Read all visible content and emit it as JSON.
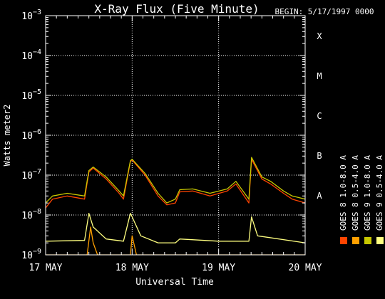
{
  "chart_data": {
    "type": "line",
    "title": "X-Ray Flux (Five Minute)",
    "begin_label": "BEGIN: 5/17/1997 0000",
    "ylabel": "Watts meter2",
    "xlabel": "Universal Time",
    "x_ticks": [
      "17 MAY",
      "18 MAY",
      "19 MAY",
      "20 MAY"
    ],
    "y_scale": "log",
    "ylim_exponents": [
      -9,
      -3
    ],
    "y_tick_exponents": [
      -9,
      -8,
      -7,
      -6,
      -5,
      -4,
      -3
    ],
    "xlim_days": [
      0,
      3
    ],
    "grid": true,
    "flare_classes": [
      {
        "label": "A",
        "exp": -8
      },
      {
        "label": "B",
        "exp": -7
      },
      {
        "label": "C",
        "exp": -6
      },
      {
        "label": "M",
        "exp": -5
      },
      {
        "label": "X",
        "exp": -4
      }
    ],
    "legend": [
      {
        "label": "GOES 8 1.0-8.0 A",
        "color": "#ff4400"
      },
      {
        "label": "GOES 8 0.5-4.0 A",
        "color": "#ffa000"
      },
      {
        "label": "GOES 9 1.0-8.0 A",
        "color": "#c8c800"
      },
      {
        "label": "GOES 9 0.5-4.0 A",
        "color": "#ffff80"
      }
    ],
    "series": [
      {
        "name": "GOES 8 1.0-8.0 A",
        "color": "#ff4400",
        "points": [
          [
            0.0,
            1.5e-08
          ],
          [
            0.08,
            2.5e-08
          ],
          [
            0.25,
            3e-08
          ],
          [
            0.45,
            2.5e-08
          ],
          [
            0.5,
            1.2e-07
          ],
          [
            0.55,
            1.5e-07
          ],
          [
            0.7,
            8e-08
          ],
          [
            0.85,
            3.5e-08
          ],
          [
            0.9,
            2.5e-08
          ],
          [
            0.98,
            2.2e-07
          ],
          [
            1.0,
            2.4e-07
          ],
          [
            1.15,
            1e-07
          ],
          [
            1.3,
            3e-08
          ],
          [
            1.4,
            1.8e-08
          ],
          [
            1.5,
            2e-08
          ],
          [
            1.55,
            3.8e-08
          ],
          [
            1.7,
            4e-08
          ],
          [
            1.9,
            3e-08
          ],
          [
            2.1,
            4e-08
          ],
          [
            2.2,
            6e-08
          ],
          [
            2.35,
            2e-08
          ],
          [
            2.38,
            2.5e-07
          ],
          [
            2.5,
            8e-08
          ],
          [
            2.6,
            6e-08
          ],
          [
            2.75,
            3.5e-08
          ],
          [
            2.85,
            2.5e-08
          ],
          [
            3.0,
            2e-08
          ]
        ]
      },
      {
        "name": "GOES 8 0.5-4.0 A",
        "color": "#ffa000",
        "points": [
          [
            0.0,
            1e-09
          ],
          [
            0.48,
            1e-09
          ],
          [
            0.52,
            5e-09
          ],
          [
            0.55,
            2e-09
          ],
          [
            0.6,
            1e-09
          ],
          [
            0.98,
            1e-09
          ],
          [
            1.0,
            3e-09
          ],
          [
            1.05,
            1e-09
          ],
          [
            3.0,
            1e-09
          ]
        ]
      },
      {
        "name": "GOES 9 1.0-8.0 A",
        "color": "#c8c800",
        "points": [
          [
            0.0,
            2e-08
          ],
          [
            0.08,
            3e-08
          ],
          [
            0.25,
            3.5e-08
          ],
          [
            0.45,
            3e-08
          ],
          [
            0.5,
            1.3e-07
          ],
          [
            0.55,
            1.6e-07
          ],
          [
            0.7,
            9e-08
          ],
          [
            0.85,
            4e-08
          ],
          [
            0.9,
            3e-08
          ],
          [
            0.98,
            2.3e-07
          ],
          [
            1.0,
            2.5e-07
          ],
          [
            1.15,
            1.1e-07
          ],
          [
            1.3,
            3.5e-08
          ],
          [
            1.4,
            2e-08
          ],
          [
            1.5,
            2.5e-08
          ],
          [
            1.55,
            4.3e-08
          ],
          [
            1.7,
            4.5e-08
          ],
          [
            1.9,
            3.5e-08
          ],
          [
            2.1,
            4.5e-08
          ],
          [
            2.2,
            7e-08
          ],
          [
            2.35,
            2.5e-08
          ],
          [
            2.38,
            2.8e-07
          ],
          [
            2.5,
            9e-08
          ],
          [
            2.6,
            7e-08
          ],
          [
            2.75,
            4e-08
          ],
          [
            2.85,
            3e-08
          ],
          [
            3.0,
            2.5e-08
          ]
        ]
      },
      {
        "name": "GOES 9 0.5-4.0 A",
        "color": "#ffff80",
        "points": [
          [
            0.0,
            2.2e-09
          ],
          [
            0.45,
            2.3e-09
          ],
          [
            0.5,
            1.1e-08
          ],
          [
            0.55,
            5e-09
          ],
          [
            0.7,
            2.5e-09
          ],
          [
            0.9,
            2.2e-09
          ],
          [
            0.98,
            1.1e-08
          ],
          [
            1.0,
            9e-09
          ],
          [
            1.1,
            3e-09
          ],
          [
            1.3,
            2e-09
          ],
          [
            1.5,
            2e-09
          ],
          [
            1.55,
            2.5e-09
          ],
          [
            2.0,
            2.2e-09
          ],
          [
            2.35,
            2.2e-09
          ],
          [
            2.38,
            9e-09
          ],
          [
            2.45,
            3e-09
          ],
          [
            3.0,
            2e-09
          ]
        ]
      }
    ]
  }
}
